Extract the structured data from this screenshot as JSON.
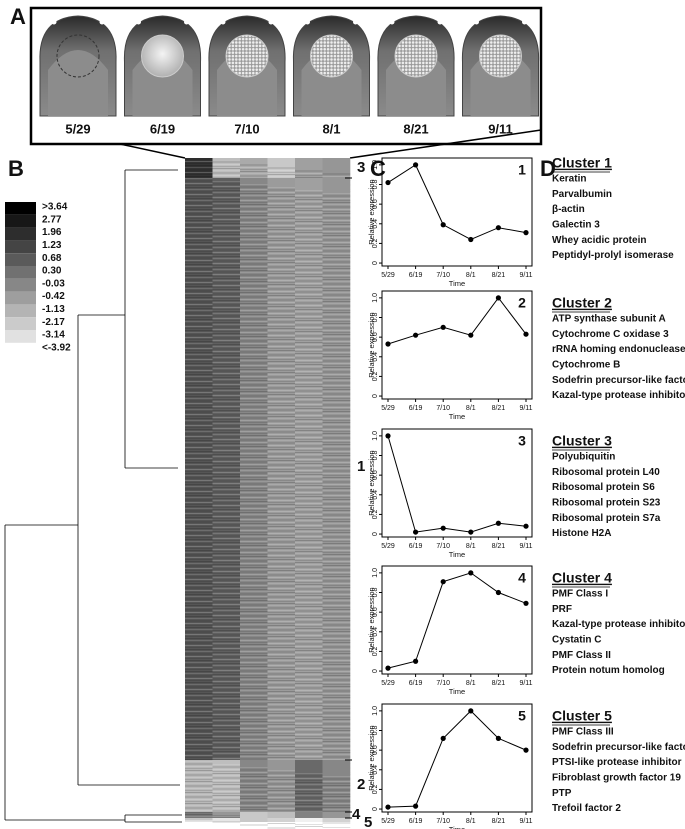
{
  "panel_labels": [
    "A",
    "B",
    "C",
    "D"
  ],
  "panel_a": {
    "dates": [
      "5/29",
      "6/19",
      "7/10",
      "8/1",
      "8/21",
      "9/11"
    ]
  },
  "color_scale": {
    "labels": [
      ">3.64",
      "2.77",
      "1.96",
      "1.23",
      "0.68",
      "0.30",
      "-0.03",
      "-0.42",
      "-1.13",
      "-2.17",
      "-3.14",
      "<-3.92"
    ]
  },
  "heatmap": {
    "cluster_labels": [
      "3",
      "1",
      "2",
      "4",
      "5"
    ]
  },
  "chart_data": [
    {
      "type": "line",
      "title": "1",
      "categories": [
        "5/29",
        "6/19",
        "7/10",
        "8/1",
        "8/21",
        "9/11"
      ],
      "values": [
        0.82,
        1.0,
        0.39,
        0.24,
        0.36,
        0.31
      ],
      "color": "#000000",
      "x_label": "Time",
      "y_label": "Relative expression",
      "ylim": [
        -0.03,
        1.07
      ],
      "yticks": [
        0,
        0.2,
        0.4,
        0.6,
        0.8,
        {
          "value": 1,
          "label": "1.0"
        }
      ]
    },
    {
      "type": "line",
      "title": "2",
      "categories": [
        "5/29",
        "6/19",
        "7/10",
        "8/1",
        "8/21",
        "9/11"
      ],
      "values": [
        0.53,
        0.62,
        0.7,
        0.62,
        1.0,
        0.63
      ],
      "color": "#000000",
      "x_label": "Time",
      "y_label": "Relative expression",
      "ylim": [
        -0.03,
        1.07
      ],
      "yticks": [
        0,
        0.2,
        0.4,
        0.6,
        0.8,
        {
          "value": 1,
          "label": "1.0"
        }
      ]
    },
    {
      "type": "line",
      "title": "3",
      "categories": [
        "5/29",
        "6/19",
        "7/10",
        "8/1",
        "8/21",
        "9/11"
      ],
      "values": [
        1.0,
        0.02,
        0.06,
        0.02,
        0.11,
        0.08
      ],
      "color": "#000000",
      "x_label": "Time",
      "y_label": "Relative expression",
      "ylim": [
        -0.03,
        1.07
      ],
      "yticks": [
        0,
        0.2,
        0.4,
        0.6,
        0.8,
        {
          "value": 1,
          "label": "1.0"
        }
      ]
    },
    {
      "type": "line",
      "title": "4",
      "categories": [
        "5/29",
        "6/19",
        "7/10",
        "8/1",
        "8/21",
        "9/11"
      ],
      "values": [
        0.03,
        0.1,
        0.91,
        1.0,
        0.8,
        0.69
      ],
      "color": "#000000",
      "x_label": "Time",
      "y_label": "Relative expression",
      "ylim": [
        -0.03,
        1.07
      ],
      "yticks": [
        0,
        0.2,
        0.4,
        0.6,
        0.8,
        {
          "value": 1,
          "label": "1.0"
        }
      ]
    },
    {
      "type": "line",
      "title": "5",
      "categories": [
        "5/29",
        "6/19",
        "7/10",
        "8/1",
        "8/21",
        "9/11"
      ],
      "values": [
        0.02,
        0.03,
        0.72,
        1.0,
        0.72,
        0.6
      ],
      "color": "#000000",
      "x_label": "Time",
      "y_label": "Relative expression",
      "ylim": [
        -0.03,
        1.07
      ],
      "yticks": [
        0,
        0.2,
        0.4,
        0.6,
        0.8,
        {
          "value": 1,
          "label": "1.0"
        }
      ]
    }
  ],
  "clusters": [
    {
      "title": "Cluster 1",
      "genes": [
        "Keratin",
        "Parvalbumin",
        "β-actin",
        "Galectin 3",
        "Whey acidic protein",
        "Peptidyl-prolyl isomerase"
      ]
    },
    {
      "title": "Cluster 2",
      "genes": [
        "ATP synthase subunit A",
        "Cytochrome C oxidase 3",
        "rRNA homing endonuclease",
        "Cytochrome B",
        "Sodefrin precursor-like factor",
        "Kazal-type protease inhibitor"
      ]
    },
    {
      "title": "Cluster 3",
      "genes": [
        "Polyubiquitin",
        "Ribosomal protein L40",
        "Ribosomal protein S6",
        "Ribosomal protein S23",
        "Ribosomal protein S7a",
        "Histone H2A"
      ]
    },
    {
      "title": "Cluster 4",
      "genes": [
        "PMF Class I",
        "PRF",
        "Kazal-type protease inhibitor",
        "Cystatin C",
        "PMF Class II",
        "Protein notum homolog"
      ]
    },
    {
      "title": "Cluster 5",
      "genes": [
        "PMF Class III",
        "Sodefrin precursor-like factor",
        "PTSI-like protease inhibitor",
        "Fibroblast growth factor 19",
        "PTP",
        "Trefoil factor 2"
      ]
    }
  ]
}
